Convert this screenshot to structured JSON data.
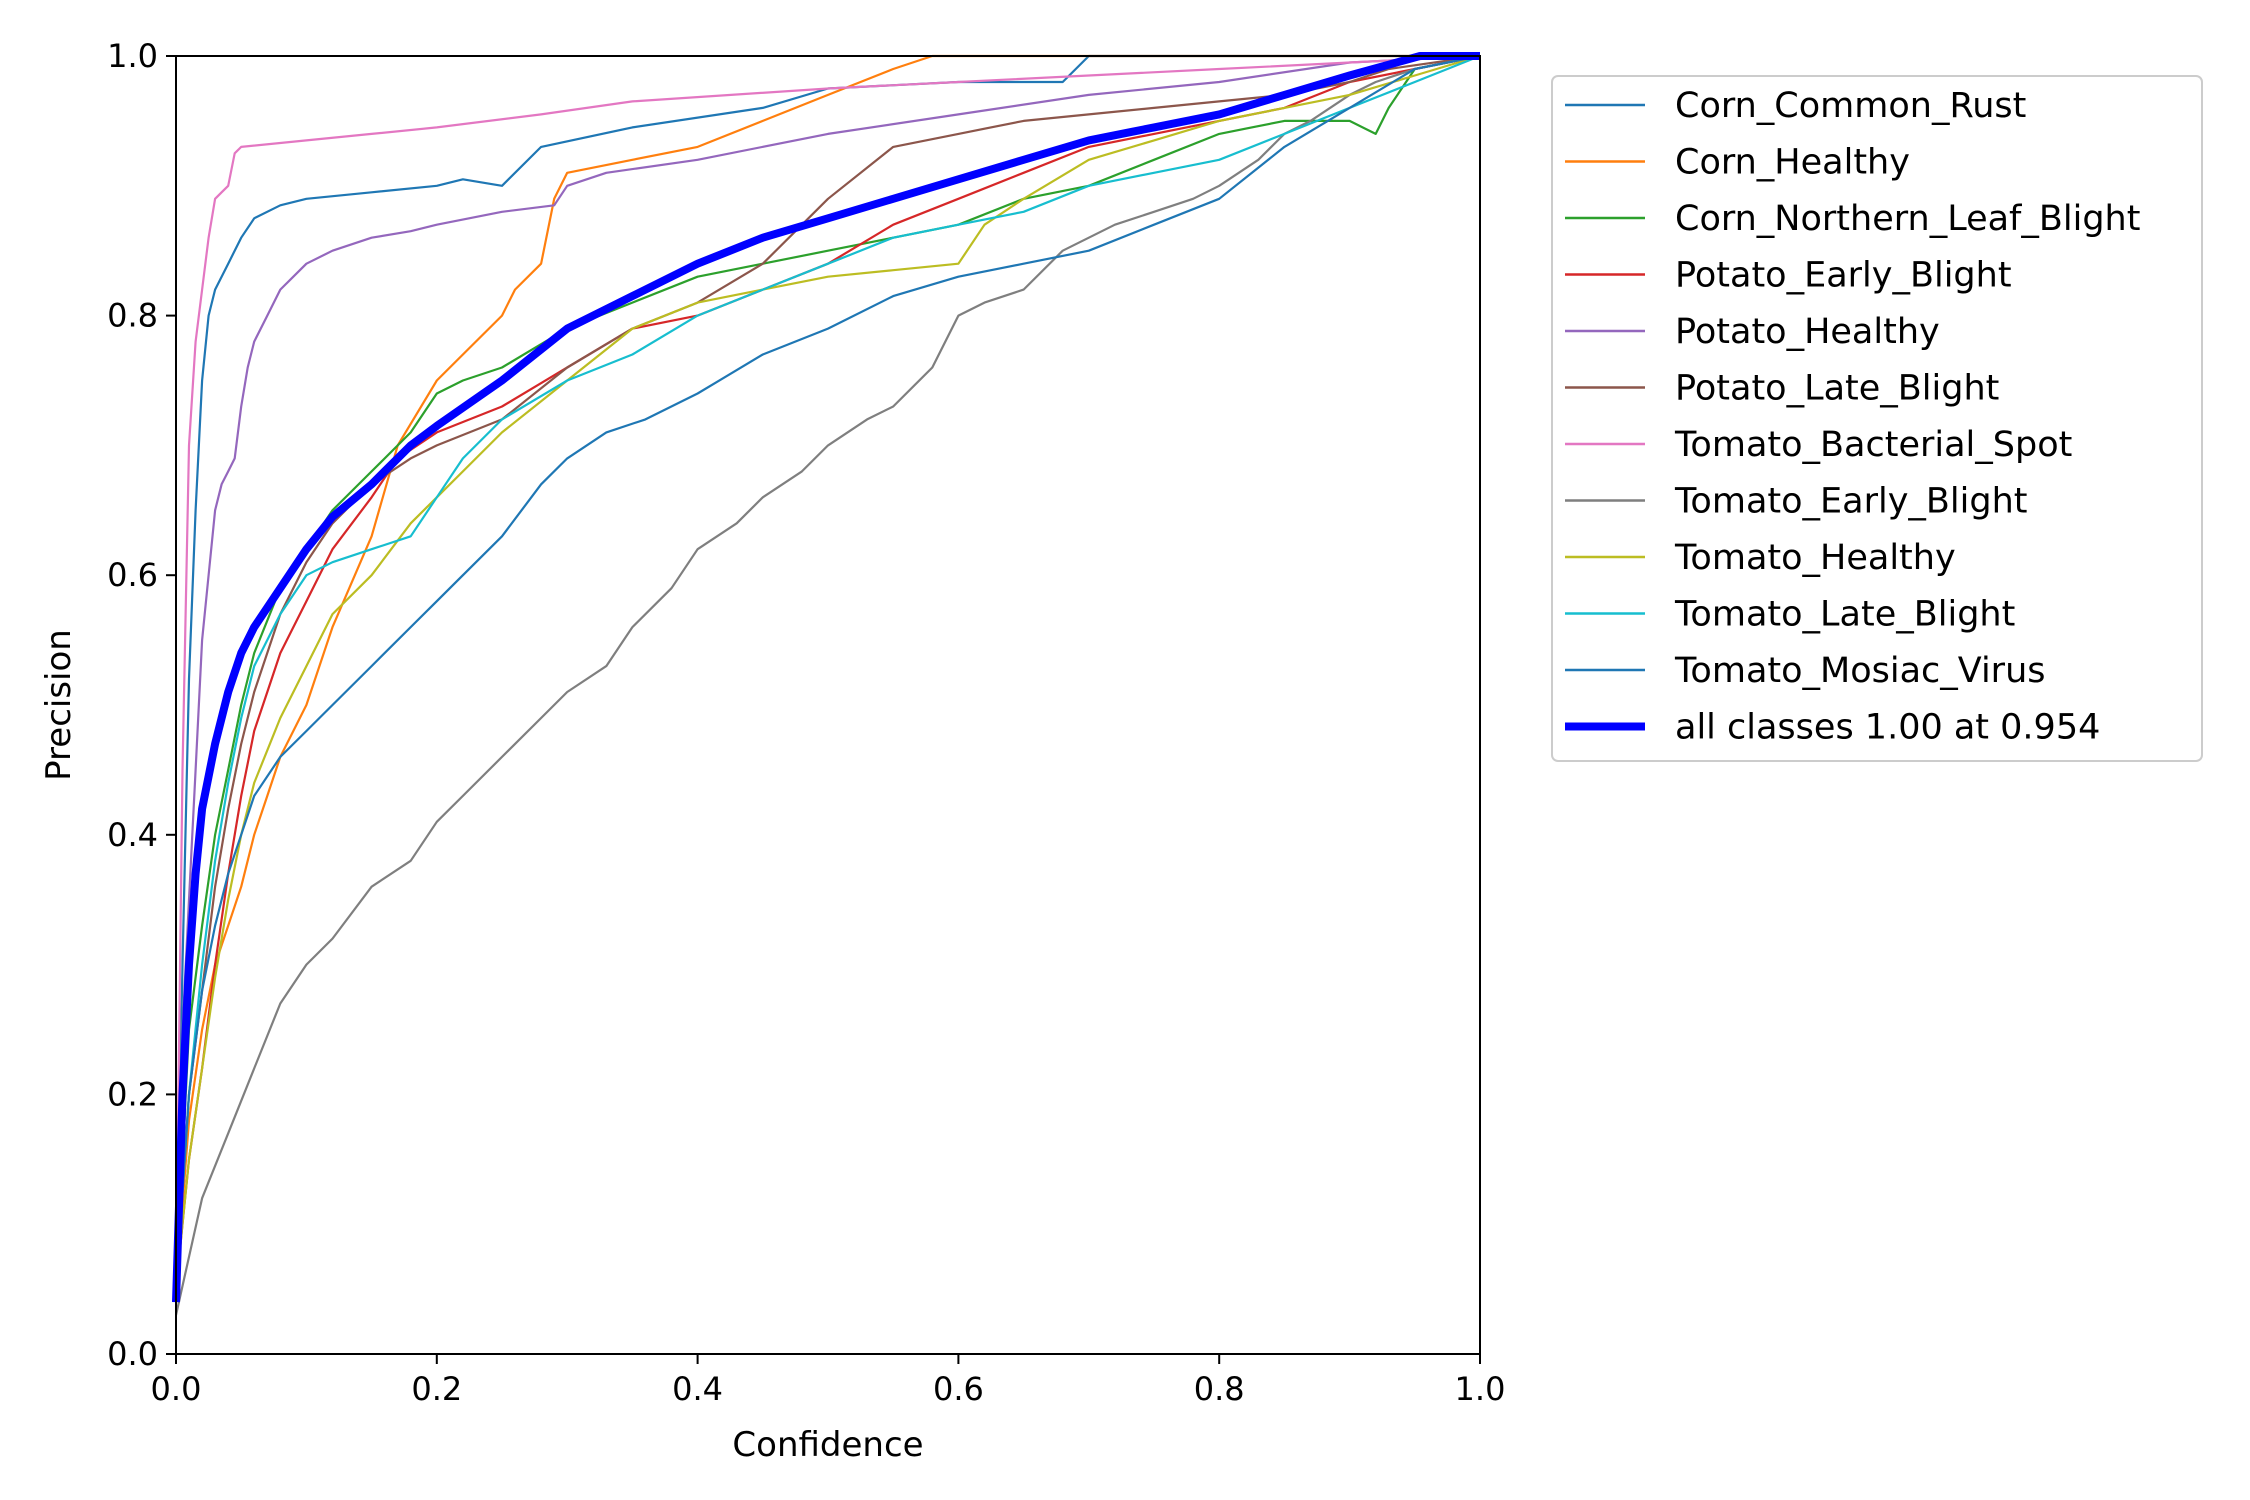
{
  "chart_data": {
    "type": "line",
    "title": "",
    "xlabel": "Confidence",
    "ylabel": "Precision",
    "xlim": [
      0,
      1
    ],
    "ylim": [
      0,
      1
    ],
    "xticks": [
      "0.0",
      "0.2",
      "0.4",
      "0.6",
      "0.8",
      "1.0"
    ],
    "yticks": [
      "0.0",
      "0.2",
      "0.4",
      "0.6",
      "0.8",
      "1.0"
    ],
    "grid": false,
    "legend_position": "outside-right-top",
    "series": [
      {
        "name": "Corn_Common_Rust",
        "color": "#1f77b4",
        "width": 2.2,
        "x": [
          0.0,
          0.005,
          0.01,
          0.015,
          0.02,
          0.025,
          0.03,
          0.04,
          0.05,
          0.06,
          0.08,
          0.1,
          0.15,
          0.2,
          0.22,
          0.25,
          0.28,
          0.35,
          0.45,
          0.5,
          0.6,
          0.68,
          0.7,
          1.0
        ],
        "y": [
          0.05,
          0.3,
          0.52,
          0.65,
          0.75,
          0.8,
          0.82,
          0.84,
          0.86,
          0.875,
          0.885,
          0.89,
          0.895,
          0.9,
          0.905,
          0.9,
          0.93,
          0.945,
          0.96,
          0.975,
          0.98,
          0.98,
          1.0,
          1.0
        ]
      },
      {
        "name": "Corn_Healthy",
        "color": "#ff7f0e",
        "width": 2.2,
        "x": [
          0.0,
          0.01,
          0.02,
          0.03,
          0.04,
          0.05,
          0.06,
          0.07,
          0.08,
          0.1,
          0.12,
          0.15,
          0.17,
          0.2,
          0.22,
          0.25,
          0.26,
          0.28,
          0.29,
          0.3,
          0.35,
          0.4,
          0.45,
          0.5,
          0.55,
          0.58,
          1.0
        ],
        "y": [
          0.05,
          0.18,
          0.25,
          0.3,
          0.33,
          0.36,
          0.4,
          0.43,
          0.46,
          0.5,
          0.56,
          0.63,
          0.7,
          0.75,
          0.77,
          0.8,
          0.82,
          0.84,
          0.89,
          0.91,
          0.92,
          0.93,
          0.95,
          0.97,
          0.99,
          1.0,
          1.0
        ]
      },
      {
        "name": "Corn_Northern_Leaf_Blight",
        "color": "#2ca02c",
        "width": 2.2,
        "x": [
          0.0,
          0.01,
          0.02,
          0.03,
          0.04,
          0.05,
          0.06,
          0.08,
          0.1,
          0.12,
          0.15,
          0.18,
          0.2,
          0.22,
          0.25,
          0.3,
          0.35,
          0.4,
          0.45,
          0.5,
          0.55,
          0.6,
          0.65,
          0.7,
          0.75,
          0.8,
          0.85,
          0.9,
          0.92,
          0.93,
          0.95,
          1.0
        ],
        "y": [
          0.05,
          0.25,
          0.33,
          0.4,
          0.45,
          0.5,
          0.54,
          0.59,
          0.62,
          0.65,
          0.68,
          0.71,
          0.74,
          0.75,
          0.76,
          0.79,
          0.81,
          0.83,
          0.84,
          0.85,
          0.86,
          0.87,
          0.89,
          0.9,
          0.92,
          0.94,
          0.95,
          0.95,
          0.94,
          0.96,
          0.99,
          1.0
        ]
      },
      {
        "name": "Potato_Early_Blight",
        "color": "#d62728",
        "width": 2.2,
        "x": [
          0.0,
          0.01,
          0.02,
          0.03,
          0.04,
          0.05,
          0.06,
          0.07,
          0.08,
          0.1,
          0.12,
          0.15,
          0.17,
          0.2,
          0.25,
          0.3,
          0.35,
          0.4,
          0.45,
          0.5,
          0.55,
          0.6,
          0.65,
          0.7,
          0.75,
          0.8,
          0.85,
          0.9,
          0.95,
          1.0
        ],
        "y": [
          0.05,
          0.15,
          0.22,
          0.3,
          0.37,
          0.43,
          0.48,
          0.51,
          0.54,
          0.58,
          0.62,
          0.66,
          0.69,
          0.71,
          0.73,
          0.76,
          0.79,
          0.8,
          0.82,
          0.84,
          0.87,
          0.89,
          0.91,
          0.93,
          0.94,
          0.95,
          0.96,
          0.98,
          0.99,
          1.0
        ]
      },
      {
        "name": "Potato_Healthy",
        "color": "#9467bd",
        "width": 2.2,
        "x": [
          0.0,
          0.005,
          0.01,
          0.015,
          0.02,
          0.025,
          0.03,
          0.035,
          0.04,
          0.045,
          0.05,
          0.055,
          0.06,
          0.07,
          0.08,
          0.1,
          0.12,
          0.15,
          0.18,
          0.2,
          0.25,
          0.29,
          0.3,
          0.33,
          0.4,
          0.5,
          0.6,
          0.7,
          0.8,
          0.9,
          1.0
        ],
        "y": [
          0.05,
          0.25,
          0.35,
          0.45,
          0.55,
          0.6,
          0.65,
          0.67,
          0.68,
          0.69,
          0.73,
          0.76,
          0.78,
          0.8,
          0.82,
          0.84,
          0.85,
          0.86,
          0.865,
          0.87,
          0.88,
          0.885,
          0.9,
          0.91,
          0.92,
          0.94,
          0.955,
          0.97,
          0.98,
          0.995,
          1.0
        ]
      },
      {
        "name": "Potato_Late_Blight",
        "color": "#8c564b",
        "width": 2.2,
        "x": [
          0.0,
          0.01,
          0.02,
          0.03,
          0.04,
          0.05,
          0.06,
          0.08,
          0.1,
          0.12,
          0.15,
          0.18,
          0.2,
          0.25,
          0.3,
          0.35,
          0.4,
          0.45,
          0.5,
          0.55,
          0.6,
          0.65,
          0.7,
          0.75,
          0.8,
          0.85,
          0.9,
          0.93,
          1.0
        ],
        "y": [
          0.05,
          0.2,
          0.28,
          0.36,
          0.42,
          0.47,
          0.51,
          0.57,
          0.61,
          0.64,
          0.67,
          0.69,
          0.7,
          0.72,
          0.76,
          0.79,
          0.81,
          0.84,
          0.89,
          0.93,
          0.94,
          0.95,
          0.955,
          0.96,
          0.965,
          0.97,
          0.98,
          0.99,
          1.0
        ]
      },
      {
        "name": "Tomato_Bacterial_Spot",
        "color": "#e377c2",
        "width": 2.2,
        "x": [
          0.0,
          0.005,
          0.01,
          0.015,
          0.02,
          0.025,
          0.03,
          0.035,
          0.04,
          0.045,
          0.05,
          0.1,
          0.15,
          0.2,
          0.28,
          0.35,
          0.5,
          0.6,
          0.7,
          0.8,
          0.9,
          1.0
        ],
        "y": [
          0.05,
          0.45,
          0.7,
          0.78,
          0.82,
          0.86,
          0.89,
          0.895,
          0.9,
          0.925,
          0.93,
          0.935,
          0.94,
          0.945,
          0.955,
          0.965,
          0.975,
          0.98,
          0.985,
          0.99,
          0.995,
          1.0
        ]
      },
      {
        "name": "Tomato_Early_Blight",
        "color": "#7f7f7f",
        "width": 2.2,
        "x": [
          0.0,
          0.02,
          0.04,
          0.06,
          0.08,
          0.1,
          0.12,
          0.15,
          0.18,
          0.2,
          0.22,
          0.25,
          0.28,
          0.3,
          0.33,
          0.35,
          0.38,
          0.4,
          0.43,
          0.45,
          0.48,
          0.5,
          0.53,
          0.55,
          0.58,
          0.6,
          0.62,
          0.65,
          0.68,
          0.7,
          0.72,
          0.75,
          0.78,
          0.8,
          0.83,
          0.85,
          0.87,
          0.9,
          0.92,
          0.95,
          1.0
        ],
        "y": [
          0.03,
          0.12,
          0.17,
          0.22,
          0.27,
          0.3,
          0.32,
          0.36,
          0.38,
          0.41,
          0.43,
          0.46,
          0.49,
          0.51,
          0.53,
          0.56,
          0.59,
          0.62,
          0.64,
          0.66,
          0.68,
          0.7,
          0.72,
          0.73,
          0.76,
          0.8,
          0.81,
          0.82,
          0.85,
          0.86,
          0.87,
          0.88,
          0.89,
          0.9,
          0.92,
          0.94,
          0.95,
          0.97,
          0.98,
          0.99,
          1.0
        ]
      },
      {
        "name": "Tomato_Healthy",
        "color": "#bcbd22",
        "width": 2.2,
        "x": [
          0.0,
          0.01,
          0.02,
          0.03,
          0.04,
          0.05,
          0.06,
          0.08,
          0.1,
          0.12,
          0.15,
          0.18,
          0.2,
          0.22,
          0.25,
          0.3,
          0.35,
          0.4,
          0.45,
          0.5,
          0.55,
          0.6,
          0.62,
          0.65,
          0.7,
          0.75,
          0.8,
          0.85,
          0.9,
          0.95,
          1.0
        ],
        "y": [
          0.05,
          0.15,
          0.22,
          0.29,
          0.35,
          0.4,
          0.44,
          0.49,
          0.53,
          0.57,
          0.6,
          0.64,
          0.66,
          0.68,
          0.71,
          0.75,
          0.79,
          0.81,
          0.82,
          0.83,
          0.835,
          0.84,
          0.87,
          0.89,
          0.92,
          0.935,
          0.95,
          0.96,
          0.97,
          0.985,
          1.0
        ]
      },
      {
        "name": "Tomato_Late_Blight",
        "color": "#17becf",
        "width": 2.2,
        "x": [
          0.0,
          0.01,
          0.02,
          0.03,
          0.04,
          0.05,
          0.06,
          0.08,
          0.1,
          0.12,
          0.15,
          0.18,
          0.2,
          0.22,
          0.25,
          0.3,
          0.35,
          0.4,
          0.45,
          0.5,
          0.55,
          0.6,
          0.65,
          0.7,
          0.75,
          0.8,
          0.85,
          0.9,
          0.95,
          1.0
        ],
        "y": [
          0.05,
          0.2,
          0.3,
          0.38,
          0.44,
          0.49,
          0.53,
          0.57,
          0.6,
          0.61,
          0.62,
          0.63,
          0.66,
          0.69,
          0.72,
          0.75,
          0.77,
          0.8,
          0.82,
          0.84,
          0.86,
          0.87,
          0.88,
          0.9,
          0.91,
          0.92,
          0.94,
          0.96,
          0.98,
          1.0
        ]
      },
      {
        "name": "Tomato_Mosiac_Virus",
        "color": "#1f77b4",
        "width": 2.2,
        "x": [
          0.0,
          0.01,
          0.02,
          0.03,
          0.04,
          0.05,
          0.06,
          0.08,
          0.1,
          0.12,
          0.15,
          0.18,
          0.2,
          0.22,
          0.25,
          0.28,
          0.3,
          0.33,
          0.36,
          0.4,
          0.45,
          0.5,
          0.55,
          0.6,
          0.65,
          0.7,
          0.75,
          0.8,
          0.85,
          0.9,
          0.95,
          1.0
        ],
        "y": [
          0.05,
          0.2,
          0.28,
          0.33,
          0.37,
          0.4,
          0.43,
          0.46,
          0.48,
          0.5,
          0.53,
          0.56,
          0.58,
          0.6,
          0.63,
          0.67,
          0.69,
          0.71,
          0.72,
          0.74,
          0.77,
          0.79,
          0.815,
          0.83,
          0.84,
          0.85,
          0.87,
          0.89,
          0.93,
          0.96,
          0.99,
          1.0
        ]
      },
      {
        "name": "all classes 1.00 at 0.954",
        "color": "#0000ff",
        "width": 8,
        "x": [
          0.0,
          0.005,
          0.01,
          0.015,
          0.02,
          0.03,
          0.04,
          0.05,
          0.06,
          0.08,
          0.1,
          0.12,
          0.15,
          0.18,
          0.2,
          0.25,
          0.3,
          0.35,
          0.4,
          0.45,
          0.5,
          0.55,
          0.6,
          0.65,
          0.7,
          0.75,
          0.8,
          0.85,
          0.9,
          0.954,
          1.0
        ],
        "y": [
          0.04,
          0.2,
          0.3,
          0.37,
          0.42,
          0.47,
          0.51,
          0.54,
          0.56,
          0.59,
          0.62,
          0.645,
          0.67,
          0.7,
          0.715,
          0.75,
          0.79,
          0.815,
          0.84,
          0.86,
          0.875,
          0.89,
          0.905,
          0.92,
          0.935,
          0.945,
          0.955,
          0.97,
          0.985,
          1.0,
          1.0
        ]
      }
    ]
  }
}
